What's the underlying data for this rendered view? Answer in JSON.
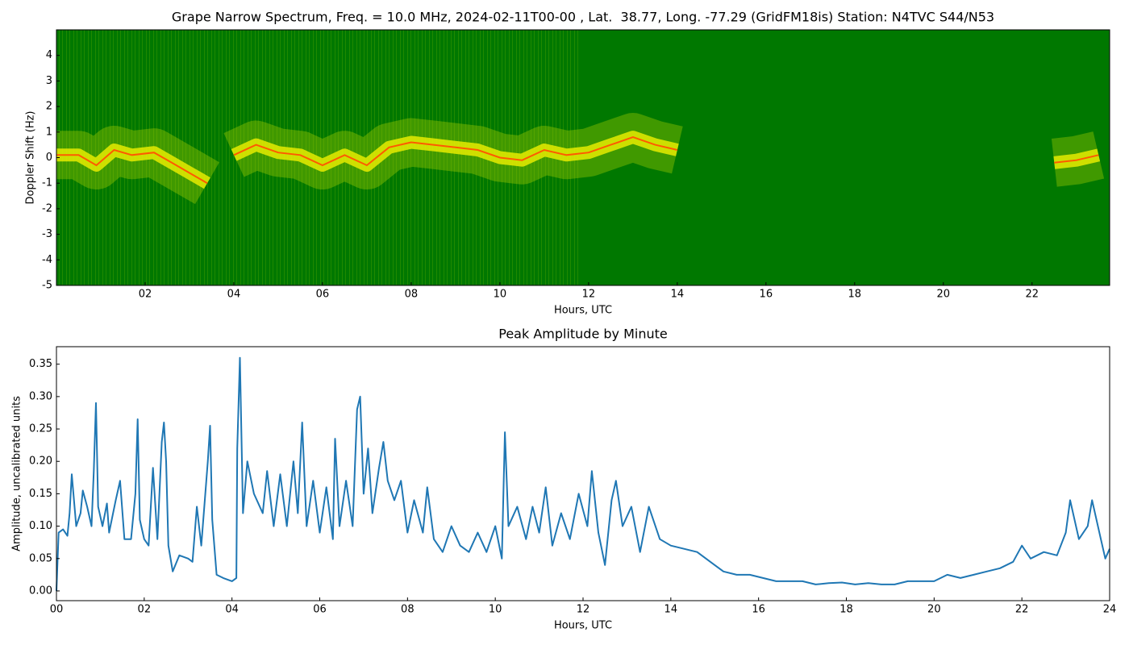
{
  "chart_data": [
    {
      "type": "spectrogram",
      "title": "Grape Narrow Spectrum, Freq. = 10.0 MHz, 2024-02-11T00-00 , Lat.  38.77, Long. -77.29 (GridFM18is) Station: N4TVC S44/N53",
      "xlabel": "Hours, UTC",
      "ylabel": "Doppler Shift (Hz)",
      "xlim": [
        0,
        23.75
      ],
      "ylim": [
        -5,
        5
      ],
      "xticks": [
        {
          "value": 2,
          "label": "02"
        },
        {
          "value": 4,
          "label": "04"
        },
        {
          "value": 6,
          "label": "06"
        },
        {
          "value": 8,
          "label": "08"
        },
        {
          "value": 10,
          "label": "10"
        },
        {
          "value": 12,
          "label": "12"
        },
        {
          "value": 14,
          "label": "14"
        },
        {
          "value": 16,
          "label": "16"
        },
        {
          "value": 18,
          "label": "18"
        },
        {
          "value": 20,
          "label": "20"
        },
        {
          "value": 22,
          "label": "22"
        }
      ],
      "yticks": [
        -5,
        -4,
        -3,
        -2,
        -1,
        0,
        1,
        2,
        3,
        4
      ],
      "color": "#ff5a00",
      "x": [
        0,
        0.5,
        0.9,
        1.3,
        1.7,
        2.2,
        2.6,
        3.0,
        3.4,
        3.7,
        4.0,
        4.5,
        5.0,
        5.5,
        6.0,
        6.5,
        7.0,
        7.5,
        8.0,
        8.5,
        9.0,
        9.5,
        10.0,
        10.5,
        11.0,
        11.5,
        12.0,
        12.5,
        13.0,
        13.5,
        14.0,
        18,
        22.5,
        23.0,
        23.5
      ],
      "values": [
        0.1,
        0.1,
        -0.3,
        0.3,
        0.1,
        0.2,
        -0.2,
        -0.6,
        -1.0,
        null,
        0.1,
        0.5,
        0.2,
        0.1,
        -0.3,
        0.1,
        -0.3,
        0.4,
        0.6,
        0.5,
        0.4,
        0.3,
        0.0,
        -0.1,
        0.3,
        0.1,
        0.2,
        0.5,
        0.8,
        0.5,
        0.3,
        null,
        -0.2,
        -0.1,
        0.1
      ]
    },
    {
      "type": "line",
      "title": "Peak Amplitude by Minute",
      "xlabel": "Hours, UTC",
      "ylabel": "Amplitude, uncalibrated units",
      "xlim": [
        0,
        24
      ],
      "ylim": [
        -0.015,
        0.377
      ],
      "xticks": [
        {
          "value": 0,
          "label": "00"
        },
        {
          "value": 2,
          "label": "02"
        },
        {
          "value": 4,
          "label": "04"
        },
        {
          "value": 6,
          "label": "06"
        },
        {
          "value": 8,
          "label": "08"
        },
        {
          "value": 10,
          "label": "10"
        },
        {
          "value": 12,
          "label": "12"
        },
        {
          "value": 14,
          "label": "14"
        },
        {
          "value": 16,
          "label": "16"
        },
        {
          "value": 18,
          "label": "18"
        },
        {
          "value": 20,
          "label": "20"
        },
        {
          "value": 22,
          "label": "22"
        },
        {
          "value": 24,
          "label": "24"
        }
      ],
      "yticks": [
        {
          "value": 0,
          "label": "0.00"
        },
        {
          "value": 0.05,
          "label": "0.05"
        },
        {
          "value": 0.1,
          "label": "0.10"
        },
        {
          "value": 0.15,
          "label": "0.15"
        },
        {
          "value": 0.2,
          "label": "0.20"
        },
        {
          "value": 0.25,
          "label": "0.25"
        },
        {
          "value": 0.3,
          "label": "0.30"
        },
        {
          "value": 0.35,
          "label": "0.35"
        }
      ],
      "color": "#1f77b4",
      "x": [
        0,
        0.05,
        0.15,
        0.25,
        0.3,
        0.35,
        0.45,
        0.55,
        0.6,
        0.7,
        0.8,
        0.85,
        0.9,
        0.95,
        1.05,
        1.15,
        1.2,
        1.35,
        1.45,
        1.55,
        1.7,
        1.8,
        1.85,
        1.9,
        2.0,
        2.1,
        2.2,
        2.3,
        2.4,
        2.45,
        2.5,
        2.55,
        2.65,
        2.8,
        3.0,
        3.1,
        3.2,
        3.3,
        3.45,
        3.5,
        3.55,
        3.65,
        3.8,
        4.0,
        4.1,
        4.12,
        4.18,
        4.25,
        4.35,
        4.5,
        4.7,
        4.8,
        4.95,
        5.1,
        5.25,
        5.4,
        5.5,
        5.6,
        5.7,
        5.85,
        6.0,
        6.15,
        6.3,
        6.35,
        6.45,
        6.6,
        6.75,
        6.85,
        6.92,
        7.0,
        7.1,
        7.2,
        7.35,
        7.45,
        7.55,
        7.7,
        7.85,
        8.0,
        8.15,
        8.35,
        8.45,
        8.6,
        8.8,
        9.0,
        9.2,
        9.4,
        9.6,
        9.8,
        10.0,
        10.15,
        10.22,
        10.3,
        10.5,
        10.7,
        10.85,
        11.0,
        11.15,
        11.3,
        11.5,
        11.7,
        11.9,
        12.1,
        12.2,
        12.35,
        12.5,
        12.65,
        12.75,
        12.9,
        13.1,
        13.3,
        13.5,
        13.75,
        14.0,
        14.3,
        14.6,
        14.9,
        15.2,
        15.5,
        15.8,
        16.1,
        16.4,
        16.7,
        17.0,
        17.3,
        17.6,
        17.9,
        18.2,
        18.5,
        18.8,
        19.1,
        19.4,
        19.7,
        20.0,
        20.3,
        20.6,
        20.9,
        21.2,
        21.5,
        21.8,
        22.0,
        22.2,
        22.5,
        22.8,
        23.0,
        23.1,
        23.3,
        23.5,
        23.6,
        23.8,
        23.9,
        24.0
      ],
      "values": [
        0.0,
        0.09,
        0.095,
        0.085,
        0.12,
        0.18,
        0.1,
        0.12,
        0.155,
        0.13,
        0.1,
        0.185,
        0.29,
        0.13,
        0.1,
        0.135,
        0.09,
        0.14,
        0.17,
        0.08,
        0.08,
        0.15,
        0.265,
        0.11,
        0.08,
        0.07,
        0.19,
        0.08,
        0.23,
        0.26,
        0.2,
        0.07,
        0.03,
        0.055,
        0.05,
        0.045,
        0.13,
        0.07,
        0.2,
        0.255,
        0.11,
        0.025,
        0.02,
        0.015,
        0.02,
        0.22,
        0.36,
        0.12,
        0.2,
        0.15,
        0.12,
        0.185,
        0.1,
        0.18,
        0.1,
        0.2,
        0.12,
        0.26,
        0.1,
        0.17,
        0.09,
        0.16,
        0.08,
        0.235,
        0.1,
        0.17,
        0.1,
        0.28,
        0.3,
        0.15,
        0.22,
        0.12,
        0.19,
        0.23,
        0.17,
        0.14,
        0.17,
        0.09,
        0.14,
        0.09,
        0.16,
        0.08,
        0.06,
        0.1,
        0.07,
        0.06,
        0.09,
        0.06,
        0.1,
        0.05,
        0.245,
        0.1,
        0.13,
        0.08,
        0.13,
        0.09,
        0.16,
        0.07,
        0.12,
        0.08,
        0.15,
        0.1,
        0.185,
        0.09,
        0.04,
        0.14,
        0.17,
        0.1,
        0.13,
        0.06,
        0.13,
        0.08,
        0.07,
        0.065,
        0.06,
        0.045,
        0.03,
        0.025,
        0.025,
        0.02,
        0.015,
        0.015,
        0.015,
        0.01,
        0.012,
        0.013,
        0.01,
        0.012,
        0.01,
        0.01,
        0.015,
        0.015,
        0.015,
        0.025,
        0.02,
        0.025,
        0.03,
        0.035,
        0.045,
        0.07,
        0.05,
        0.06,
        0.055,
        0.09,
        0.14,
        0.08,
        0.1,
        0.14,
        0.08,
        0.05,
        0.065
      ]
    }
  ]
}
